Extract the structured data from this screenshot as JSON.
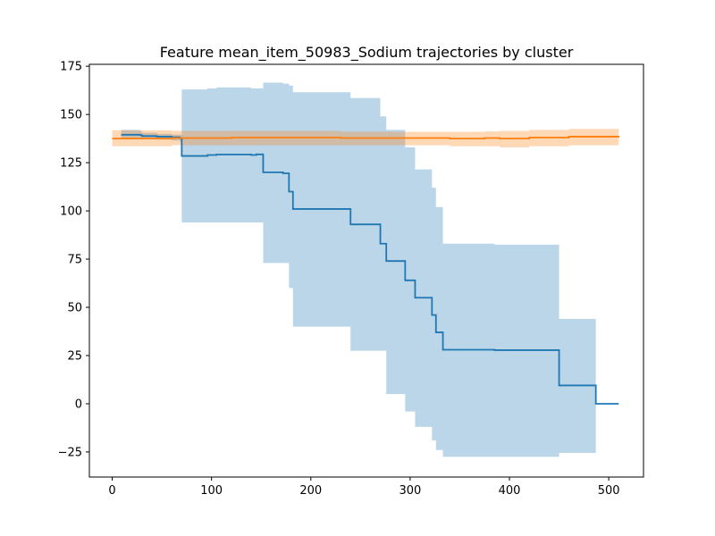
{
  "chart_data": {
    "type": "line",
    "title": "Feature mean_item_50983_Sodium trajectories by cluster",
    "xlabel": "",
    "ylabel": "",
    "xlim": [
      -23,
      535
    ],
    "ylim": [
      -38,
      176
    ],
    "x_ticks": [
      0,
      100,
      200,
      300,
      400,
      500
    ],
    "y_ticks": [
      -25,
      0,
      25,
      50,
      75,
      100,
      125,
      150,
      175
    ],
    "x_tick_labels": [
      "0",
      "100",
      "200",
      "300",
      "400",
      "500"
    ],
    "y_tick_labels": [
      "−25",
      "0",
      "25",
      "50",
      "75",
      "100",
      "125",
      "150",
      "175"
    ],
    "grid": false,
    "legend": "none",
    "series": [
      {
        "color": "#1f77b4",
        "band_color": "#1f77b4",
        "points": [
          {
            "x": 9,
            "y": 139.5,
            "lo": 137.5,
            "hi": 142
          },
          {
            "x": 28,
            "y": 139.3,
            "lo": 137.5,
            "hi": 141.5
          },
          {
            "x": 30,
            "y": 138.8,
            "lo": 137.2,
            "hi": 140.5
          },
          {
            "x": 45,
            "y": 138.5,
            "lo": 137,
            "hi": 140
          },
          {
            "x": 60,
            "y": 138.2,
            "lo": 136.5,
            "hi": 139.5
          },
          {
            "x": 68,
            "y": 137.8,
            "lo": 136,
            "hi": 139.5
          },
          {
            "x": 70,
            "y": 128.5,
            "lo": 94,
            "hi": 163
          },
          {
            "x": 95,
            "y": 128.5,
            "lo": 94,
            "hi": 163
          },
          {
            "x": 96,
            "y": 129,
            "lo": 94,
            "hi": 163.5
          },
          {
            "x": 105,
            "y": 129.2,
            "lo": 94,
            "hi": 164
          },
          {
            "x": 125,
            "y": 129.2,
            "lo": 94,
            "hi": 164
          },
          {
            "x": 140,
            "y": 129,
            "lo": 94,
            "hi": 163.5
          },
          {
            "x": 145,
            "y": 129.3,
            "lo": 94,
            "hi": 163.5
          },
          {
            "x": 152,
            "y": 120,
            "lo": 73,
            "hi": 166.5
          },
          {
            "x": 170,
            "y": 120,
            "lo": 73,
            "hi": 166.5
          },
          {
            "x": 172,
            "y": 119.5,
            "lo": 73,
            "hi": 166
          },
          {
            "x": 178,
            "y": 110,
            "lo": 60,
            "hi": 165
          },
          {
            "x": 182,
            "y": 101,
            "lo": 40,
            "hi": 161.5
          },
          {
            "x": 240,
            "y": 93,
            "lo": 27.5,
            "hi": 158.5
          },
          {
            "x": 270,
            "y": 83,
            "lo": 27.5,
            "hi": 149
          },
          {
            "x": 276,
            "y": 74,
            "lo": 5,
            "hi": 142
          },
          {
            "x": 295,
            "y": 64,
            "lo": -4,
            "hi": 133
          },
          {
            "x": 305,
            "y": 55,
            "lo": -12,
            "hi": 121.5
          },
          {
            "x": 322,
            "y": 46,
            "lo": -19,
            "hi": 112
          },
          {
            "x": 326,
            "y": 37,
            "lo": -24,
            "hi": 102
          },
          {
            "x": 333,
            "y": 28,
            "lo": -27.5,
            "hi": 83
          },
          {
            "x": 385,
            "y": 27.8,
            "lo": -27.5,
            "hi": 82.5
          },
          {
            "x": 450,
            "y": 9.5,
            "lo": -25.5,
            "hi": 44
          },
          {
            "x": 487,
            "y": 0,
            "lo": 0,
            "hi": 0
          },
          {
            "x": 510,
            "y": 0,
            "lo": 0,
            "hi": 0
          }
        ]
      },
      {
        "color": "#ff7f0e",
        "band_color": "#ff7f0e",
        "points": [
          {
            "x": 0,
            "y": 137.5,
            "lo": 133.5,
            "hi": 141.8
          },
          {
            "x": 60,
            "y": 137.8,
            "lo": 134,
            "hi": 141.5
          },
          {
            "x": 120,
            "y": 138,
            "lo": 134,
            "hi": 141.5
          },
          {
            "x": 200,
            "y": 138,
            "lo": 134,
            "hi": 141.5
          },
          {
            "x": 230,
            "y": 137.8,
            "lo": 134,
            "hi": 141
          },
          {
            "x": 290,
            "y": 137.8,
            "lo": 134,
            "hi": 141
          },
          {
            "x": 340,
            "y": 137.5,
            "lo": 133.5,
            "hi": 141
          },
          {
            "x": 375,
            "y": 137.8,
            "lo": 133.5,
            "hi": 141.2
          },
          {
            "x": 390,
            "y": 137.5,
            "lo": 133,
            "hi": 141.5
          },
          {
            "x": 420,
            "y": 138,
            "lo": 133.5,
            "hi": 142
          },
          {
            "x": 460,
            "y": 138.5,
            "lo": 134,
            "hi": 142.5
          },
          {
            "x": 510,
            "y": 138,
            "lo": 134,
            "hi": 142
          }
        ]
      }
    ]
  }
}
